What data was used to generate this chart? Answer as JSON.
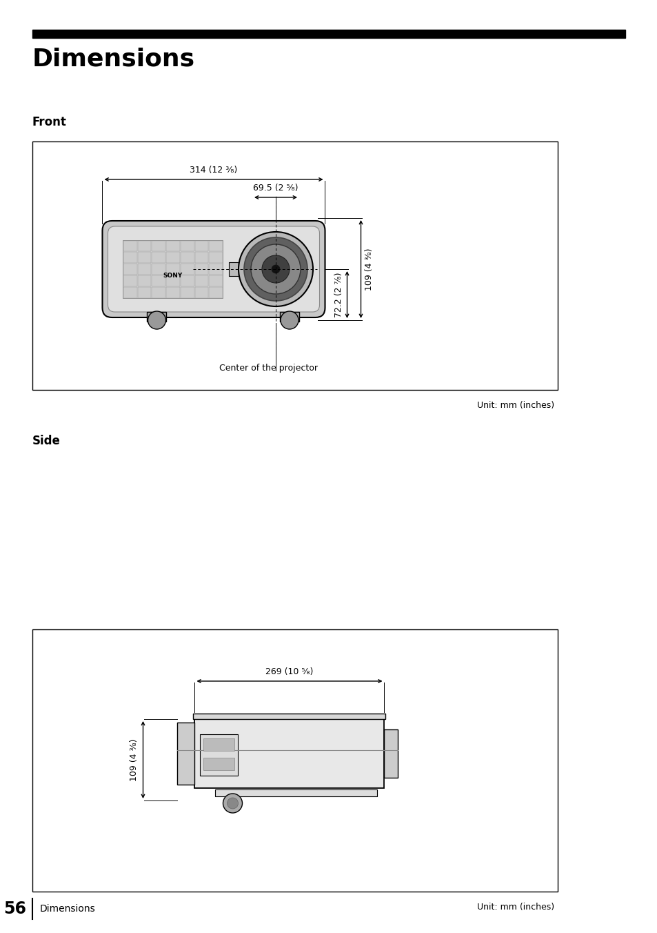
{
  "title": "Dimensions",
  "section_front": "Front",
  "section_side": "Side",
  "footer_text": "56",
  "footer_sub": "Dimensions",
  "unit_label": "Unit: mm (inches)",
  "front_dims": {
    "width_label": "314 (12 ³⁄₈)",
    "center_width_label": "69.5 (2 ⁵⁄₈)",
    "height_label": "109 (4 ³⁄₈)",
    "height2_label": "72.2 (2 ⁷⁄₈)",
    "center_label": "Center of the projector"
  },
  "side_dims": {
    "width_label": "269 (10 ⁵⁄₈)",
    "height_label": "109 (4 ³⁄₈)"
  },
  "colors": {
    "black": "#000000",
    "white": "#ffffff",
    "light_gray": "#d0d0d0",
    "mid_gray": "#aaaaaa",
    "gray": "#888888",
    "dark_gray": "#555555",
    "bg": "#ffffff"
  }
}
